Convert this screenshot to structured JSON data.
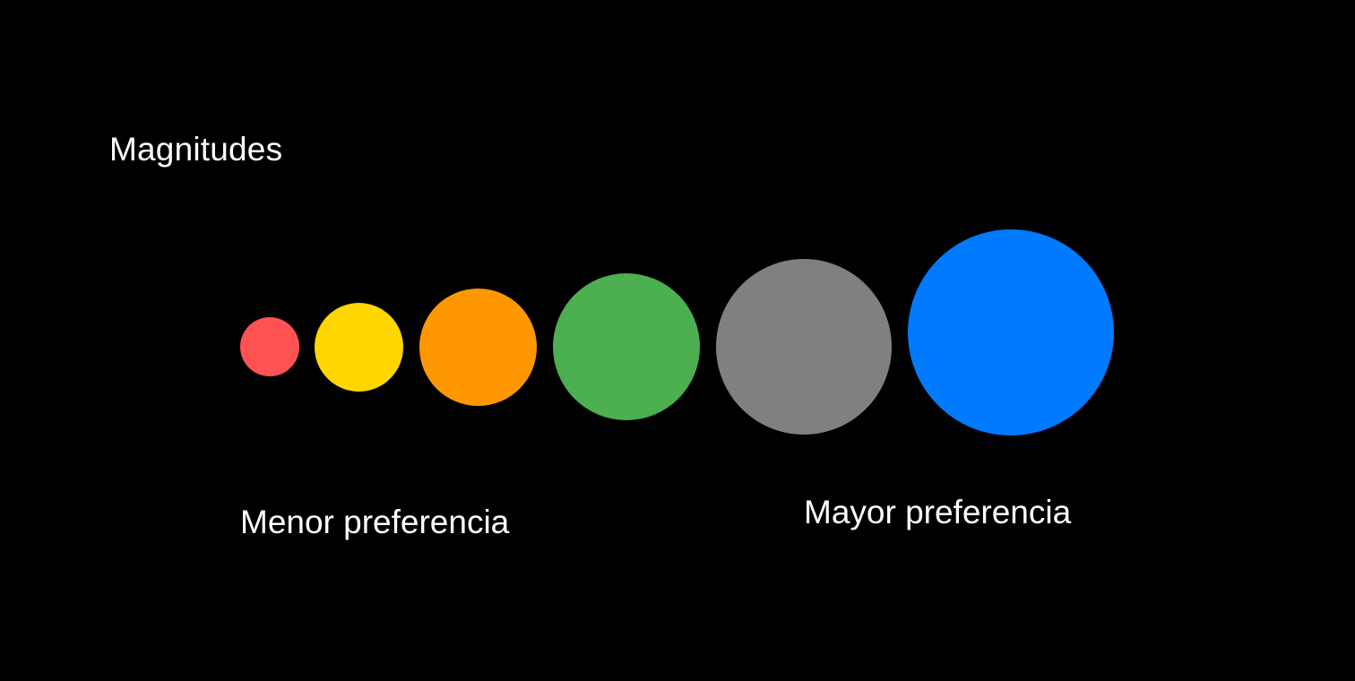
{
  "title": "Magnitudes",
  "labels": {
    "min": "Menor preferencia",
    "max": "Mayor preferencia"
  },
  "circles": [
    {
      "rank": 1,
      "color": "#FF5252"
    },
    {
      "rank": 2,
      "color": "#FFD600"
    },
    {
      "rank": 3,
      "color": "#FF9800"
    },
    {
      "rank": 4,
      "color": "#4CAF50"
    },
    {
      "rank": 5,
      "color": "#808080"
    },
    {
      "rank": 6,
      "color": "#007AFF"
    }
  ]
}
